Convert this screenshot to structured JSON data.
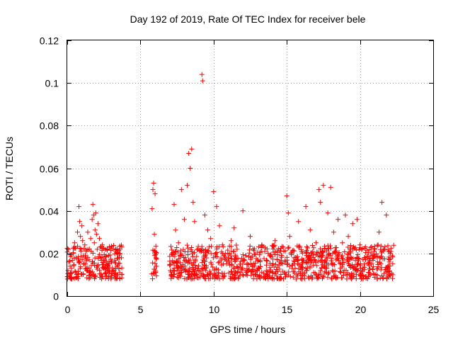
{
  "chart_data": {
    "type": "scatter",
    "title": "Day 192 of 2019, Rate Of TEC Index for receiver bele",
    "xlabel": "GPS time / hours",
    "ylabel": "ROTI / TECUs",
    "xlim": [
      0,
      25
    ],
    "ylim": [
      0,
      0.12
    ],
    "xticks": [
      0,
      5,
      10,
      15,
      20,
      25
    ],
    "xtick_labels": [
      "0",
      "5",
      "10",
      "15",
      "20",
      "25"
    ],
    "yticks": [
      0,
      0.02,
      0.04,
      0.06,
      0.08,
      0.1,
      0.12
    ],
    "ytick_labels": [
      "0",
      "0.02",
      "0.04",
      "0.06",
      "0.08",
      "0.1",
      "0.12"
    ],
    "grid": true,
    "marker": "plus",
    "color": "#ff0000",
    "series": [
      {
        "x": [
          0.05,
          0.1,
          0.15,
          0.2,
          0.3,
          0.4,
          0.5,
          0.6,
          0.7,
          0.8,
          0.85,
          0.9,
          0.95,
          1.0,
          1.05,
          1.1,
          1.15,
          1.2,
          1.3,
          1.4,
          1.5,
          1.6,
          1.7,
          1.75,
          1.8,
          1.85,
          1.9,
          1.95,
          2.0,
          2.05,
          2.1,
          2.2,
          2.3,
          2.4,
          2.5,
          2.6,
          2.8,
          3.0,
          3.2,
          3.4,
          3.6,
          3.7,
          5.8,
          5.85,
          5.9,
          5.95,
          6.0,
          6.05,
          6.1,
          7.2,
          7.3,
          7.4,
          7.5,
          7.6,
          7.8,
          8.0,
          8.2,
          8.3,
          8.4,
          8.5,
          8.6,
          8.7,
          9.2,
          9.25,
          9.4,
          9.6,
          9.8,
          10.0,
          10.2,
          10.4,
          10.6,
          10.8,
          11.0,
          11.2,
          11.4,
          11.6,
          11.8,
          12.0,
          12.2,
          12.5,
          12.8,
          13.0,
          13.3,
          13.6,
          13.9,
          14.2,
          14.5,
          14.8,
          15.0,
          15.1,
          15.2,
          15.5,
          15.8,
          16.0,
          16.3,
          16.6,
          17.0,
          17.2,
          17.3,
          17.5,
          17.8,
          18.0,
          18.2,
          18.5,
          18.8,
          19.0,
          19.2,
          19.5,
          19.8,
          20.0,
          20.3,
          20.6,
          21.0,
          21.3,
          21.5,
          21.8,
          22.0,
          22.2
        ],
        "y": [
          0.012,
          0.016,
          0.009,
          0.014,
          0.011,
          0.02,
          0.025,
          0.018,
          0.03,
          0.042,
          0.035,
          0.028,
          0.022,
          0.033,
          0.026,
          0.019,
          0.015,
          0.024,
          0.021,
          0.03,
          0.017,
          0.027,
          0.036,
          0.043,
          0.038,
          0.025,
          0.031,
          0.039,
          0.029,
          0.022,
          0.034,
          0.027,
          0.018,
          0.024,
          0.013,
          0.011,
          0.014,
          0.016,
          0.012,
          0.01,
          0.022,
          0.018,
          0.041,
          0.05,
          0.053,
          0.029,
          0.048,
          0.018,
          0.014,
          0.02,
          0.043,
          0.031,
          0.012,
          0.025,
          0.05,
          0.036,
          0.052,
          0.067,
          0.06,
          0.069,
          0.044,
          0.035,
          0.104,
          0.101,
          0.038,
          0.031,
          0.027,
          0.049,
          0.042,
          0.033,
          0.024,
          0.02,
          0.018,
          0.026,
          0.032,
          0.022,
          0.015,
          0.04,
          0.019,
          0.028,
          0.014,
          0.017,
          0.024,
          0.012,
          0.019,
          0.026,
          0.016,
          0.021,
          0.047,
          0.039,
          0.028,
          0.018,
          0.035,
          0.014,
          0.042,
          0.031,
          0.025,
          0.05,
          0.044,
          0.052,
          0.039,
          0.051,
          0.03,
          0.036,
          0.025,
          0.038,
          0.028,
          0.034,
          0.036,
          0.024,
          0.018,
          0.015,
          0.022,
          0.03,
          0.044,
          0.038,
          0.016,
          0.019
        ]
      }
    ],
    "band": {
      "windows": [
        [
          0.0,
          3.75
        ],
        [
          5.75,
          6.15
        ],
        [
          7.0,
          22.3
        ]
      ],
      "low": 0.008,
      "high": 0.024
    }
  }
}
